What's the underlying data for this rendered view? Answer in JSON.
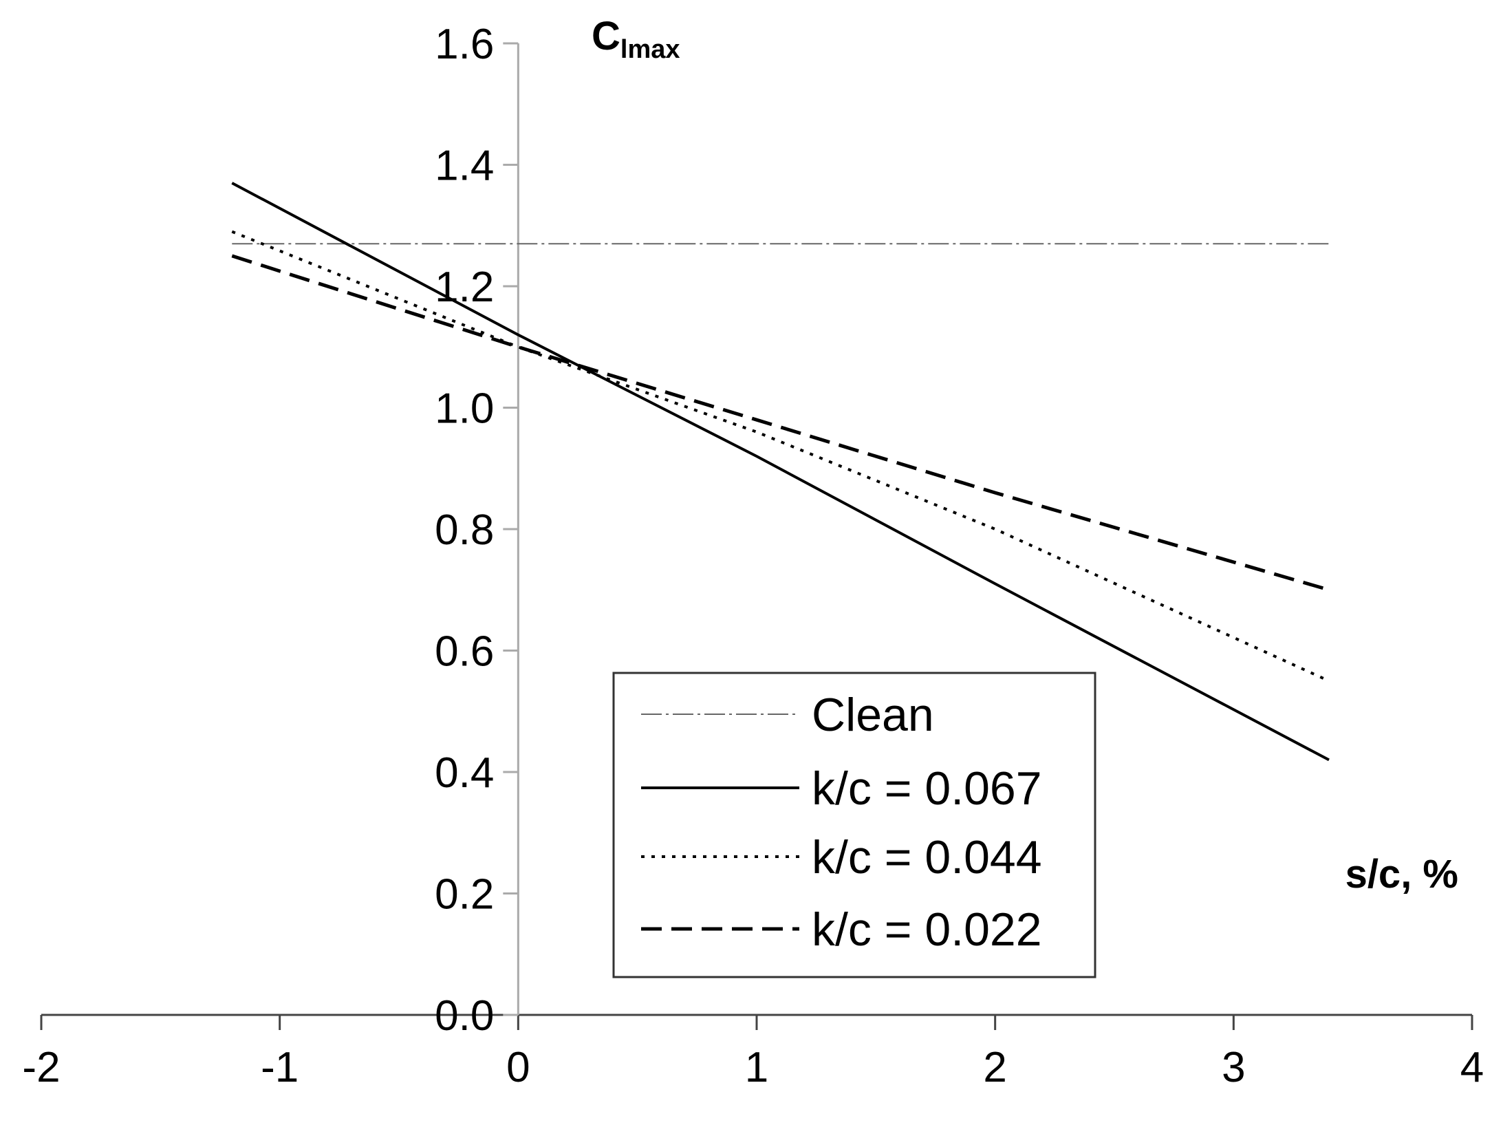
{
  "chart_data": {
    "type": "line",
    "ylabel_main": "C",
    "ylabel_sub": "lmax",
    "xlabel": "s/c, %",
    "xlim": [
      -2,
      4
    ],
    "ylim": [
      0.0,
      1.6
    ],
    "x_ticks": [
      "-2",
      "-1",
      "0",
      "1",
      "2",
      "3",
      "4"
    ],
    "y_ticks": [
      "0.0",
      "0.2",
      "0.4",
      "0.6",
      "0.8",
      "1.0",
      "1.2",
      "1.4",
      "1.6"
    ],
    "grid": false,
    "legend_position": "bottom-center",
    "series": [
      {
        "name": "Clean",
        "style": "dash-dot-thin",
        "color": "#666666",
        "x": [
          -1.2,
          3.4
        ],
        "y": [
          1.27,
          1.27
        ]
      },
      {
        "name": "k/c = 0.067",
        "style": "solid",
        "color": "#000000",
        "x": [
          -1.2,
          0.0,
          1.0,
          2.0,
          3.4
        ],
        "y": [
          1.37,
          1.12,
          0.92,
          0.71,
          0.42
        ]
      },
      {
        "name": "k/c = 0.044",
        "style": "dotted",
        "color": "#000000",
        "x": [
          -1.2,
          0.0,
          1.0,
          2.0,
          3.4
        ],
        "y": [
          1.29,
          1.1,
          0.96,
          0.8,
          0.55
        ]
      },
      {
        "name": "k/c = 0.022",
        "style": "dashed",
        "color": "#000000",
        "x": [
          -1.2,
          0.0,
          1.0,
          2.0,
          3.4
        ],
        "y": [
          1.25,
          1.1,
          0.98,
          0.86,
          0.7
        ]
      }
    ]
  }
}
